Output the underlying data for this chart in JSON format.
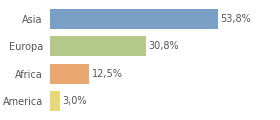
{
  "categories": [
    "America",
    "Africa",
    "Europa",
    "Asia"
  ],
  "values": [
    3.0,
    12.5,
    30.8,
    53.8
  ],
  "labels": [
    "3,0%",
    "12,5%",
    "30,8%",
    "53,8%"
  ],
  "bar_colors": [
    "#e8d87a",
    "#e8a870",
    "#b5c98a",
    "#7a9fc4"
  ],
  "background_color": "#ffffff",
  "xlim": [
    0,
    72
  ],
  "bar_height": 0.72,
  "label_fontsize": 7.0,
  "tick_fontsize": 7.0,
  "label_color": "#555555",
  "tick_color": "#555555"
}
